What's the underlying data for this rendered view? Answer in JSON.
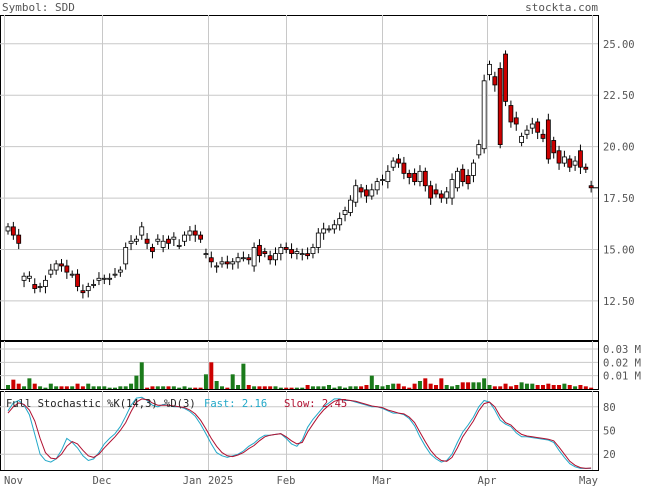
{
  "header": {
    "symbol_label": "Symbol: SDD",
    "site": "stockta.com"
  },
  "colors": {
    "grid": "#c8c8c8",
    "label": "#555555",
    "up_fill": "#ffffff",
    "down_fill": "#cc0000",
    "up_volume": "#1a7a1a",
    "down_volume": "#cc0000",
    "fast_line": "#22a8c8",
    "slow_line": "#b01030"
  },
  "chart_data": [
    {
      "type": "candlestick",
      "title": "",
      "x_labels": [
        "Nov",
        "Dec",
        "Jan 2025",
        "Feb",
        "Mar",
        "Apr",
        "May"
      ],
      "y_ticks": [
        "25.00",
        "22.50",
        "20.00",
        "17.50",
        "15.00",
        "12.50"
      ],
      "ylim": [
        10.6,
        26.4
      ],
      "last_close_marker": 18.0,
      "open": [
        15.9,
        16.1,
        15.7,
        13.5,
        13.6,
        13.3,
        13.2,
        13.2,
        13.8,
        14.0,
        14.3,
        14.2,
        13.8,
        13.8,
        13.0,
        13.0,
        13.3,
        13.5,
        13.6,
        13.6,
        13.8,
        13.9,
        14.3,
        15.3,
        15.4,
        15.7,
        15.5,
        15.1,
        15.4,
        15.1,
        15.5,
        15.5,
        15.2,
        15.4,
        15.7,
        15.9,
        15.7,
        14.8,
        14.6,
        14.2,
        14.3,
        14.4,
        14.3,
        14.4,
        14.6,
        14.6,
        14.2,
        15.2,
        14.9,
        14.7,
        14.5,
        14.8,
        15.1,
        15.0,
        14.8,
        14.8,
        14.8,
        14.8,
        15.1,
        15.8,
        16.0,
        16.0,
        16.2,
        16.7,
        16.8,
        17.3,
        18.0,
        17.9,
        17.6,
        17.9,
        18.4,
        18.3,
        19.0,
        19.4,
        19.2,
        18.7,
        18.7,
        18.3,
        18.8,
        18.1,
        17.9,
        17.7,
        17.5,
        17.5,
        18.0,
        18.9,
        18.6,
        18.6,
        19.6,
        19.9,
        23.5,
        23.4,
        23.8,
        24.5,
        22.0,
        21.4,
        20.2,
        20.6,
        20.9,
        21.2,
        20.6,
        21.3,
        20.3,
        19.8,
        19.2,
        19.4,
        19.1,
        19.8,
        19.0,
        18.1
      ],
      "close": [
        16.1,
        15.7,
        15.3,
        13.7,
        13.7,
        13.1,
        13.2,
        13.5,
        14.0,
        14.3,
        14.2,
        13.9,
        13.8,
        13.2,
        12.9,
        13.2,
        13.3,
        13.6,
        13.6,
        13.6,
        13.8,
        14.0,
        15.1,
        15.4,
        15.5,
        16.1,
        15.3,
        14.9,
        15.5,
        15.4,
        15.3,
        15.6,
        15.2,
        15.7,
        15.9,
        15.7,
        15.5,
        14.8,
        14.4,
        14.2,
        14.4,
        14.3,
        14.4,
        14.6,
        14.6,
        14.5,
        15.1,
        14.7,
        14.8,
        14.5,
        14.8,
        15.1,
        15.0,
        14.8,
        14.9,
        14.8,
        14.7,
        15.1,
        15.8,
        16.0,
        16.0,
        16.2,
        16.5,
        16.9,
        17.4,
        18.1,
        17.8,
        17.6,
        17.9,
        18.3,
        18.4,
        18.8,
        19.3,
        19.2,
        18.7,
        18.5,
        18.3,
        18.8,
        18.1,
        17.5,
        17.7,
        17.5,
        17.8,
        18.4,
        18.8,
        18.3,
        18.2,
        19.2,
        20.1,
        23.2,
        24.0,
        23.0,
        20.1,
        22.2,
        21.2,
        21.1,
        20.5,
        20.8,
        21.1,
        20.7,
        20.4,
        19.4,
        19.7,
        19.2,
        19.5,
        19.0,
        19.3,
        19.0,
        18.9,
        18.0
      ]
    },
    {
      "type": "bar",
      "title": "",
      "y_ticks": [
        "0.03 M",
        "0.02 M",
        "0.01 M"
      ],
      "ylim": [
        0,
        0.036
      ],
      "values": [
        0.003,
        0.007,
        0.004,
        0.002,
        0.008,
        0.004,
        0.002,
        0.001,
        0.004,
        0.002,
        0.002,
        0.002,
        0.002,
        0.004,
        0.002,
        0.004,
        0.002,
        0.002,
        0.002,
        0.001,
        0.001,
        0.002,
        0.002,
        0.004,
        0.01,
        0.02,
        0.001,
        0.002,
        0.002,
        0.002,
        0.002,
        0.002,
        0.001,
        0.002,
        0.001,
        0.001,
        0.001,
        0.011,
        0.02,
        0.006,
        0.002,
        0.001,
        0.011,
        0.003,
        0.019,
        0.003,
        0.002,
        0.002,
        0.002,
        0.002,
        0.002,
        0.001,
        0.001,
        0.001,
        0.001,
        0.001,
        0.003,
        0.002,
        0.002,
        0.002,
        0.003,
        0.001,
        0.002,
        0.001,
        0.002,
        0.002,
        0.002,
        0.003,
        0.01,
        0.003,
        0.002,
        0.003,
        0.004,
        0.004,
        0.002,
        0.001,
        0.004,
        0.006,
        0.008,
        0.004,
        0.003,
        0.008,
        0.003,
        0.002,
        0.003,
        0.005,
        0.005,
        0.005,
        0.005,
        0.008,
        0.003,
        0.002,
        0.002,
        0.004,
        0.002,
        0.003,
        0.005,
        0.004,
        0.004,
        0.003,
        0.003,
        0.004,
        0.003,
        0.003,
        0.004,
        0.003,
        0.002,
        0.003,
        0.002,
        0.001
      ]
    },
    {
      "type": "line",
      "title": "Full Stochastic %K(14,3) %D(3)",
      "fast_label": "Fast: 2.16",
      "slow_label": "Slow: 2.45",
      "y_ticks": [
        "80",
        "50",
        "20"
      ],
      "ylim": [
        0,
        100
      ],
      "series": [
        {
          "name": "Fast",
          "values": [
            75,
            85,
            88,
            82,
            70,
            45,
            20,
            12,
            10,
            14,
            25,
            40,
            35,
            28,
            18,
            12,
            14,
            22,
            33,
            40,
            46,
            55,
            68,
            82,
            91,
            92,
            88,
            82,
            80,
            83,
            82,
            80,
            80,
            78,
            74,
            68,
            58,
            46,
            33,
            22,
            18,
            16,
            18,
            20,
            24,
            30,
            34,
            40,
            44,
            44,
            45,
            46,
            40,
            33,
            30,
            38,
            54,
            64,
            72,
            80,
            85,
            90,
            90,
            88,
            88,
            86,
            84,
            82,
            80,
            80,
            78,
            75,
            72,
            72,
            70,
            65,
            56,
            42,
            30,
            20,
            14,
            10,
            12,
            20,
            35,
            48,
            57,
            67,
            80,
            88,
            86,
            76,
            63,
            58,
            55,
            47,
            42,
            42,
            41,
            40,
            39,
            38,
            35,
            25,
            16,
            8,
            4,
            2,
            2,
            2
          ]
        },
        {
          "name": "Slow",
          "values": [
            72,
            80,
            85,
            83,
            76,
            62,
            40,
            22,
            15,
            14,
            20,
            30,
            36,
            33,
            25,
            18,
            16,
            20,
            28,
            35,
            42,
            50,
            60,
            74,
            86,
            90,
            89,
            85,
            82,
            82,
            82,
            81,
            80,
            79,
            76,
            71,
            63,
            52,
            40,
            30,
            22,
            18,
            17,
            19,
            22,
            27,
            31,
            37,
            42,
            44,
            45,
            46,
            42,
            37,
            33,
            35,
            48,
            58,
            68,
            76,
            82,
            87,
            89,
            89,
            88,
            87,
            85,
            83,
            81,
            80,
            79,
            76,
            74,
            72,
            71,
            67,
            60,
            48,
            36,
            25,
            17,
            12,
            11,
            16,
            28,
            42,
            52,
            62,
            75,
            84,
            86,
            80,
            68,
            60,
            57,
            50,
            45,
            43,
            42,
            41,
            40,
            39,
            37,
            29,
            20,
            11,
            6,
            3,
            2,
            2.5
          ]
        }
      ]
    }
  ]
}
